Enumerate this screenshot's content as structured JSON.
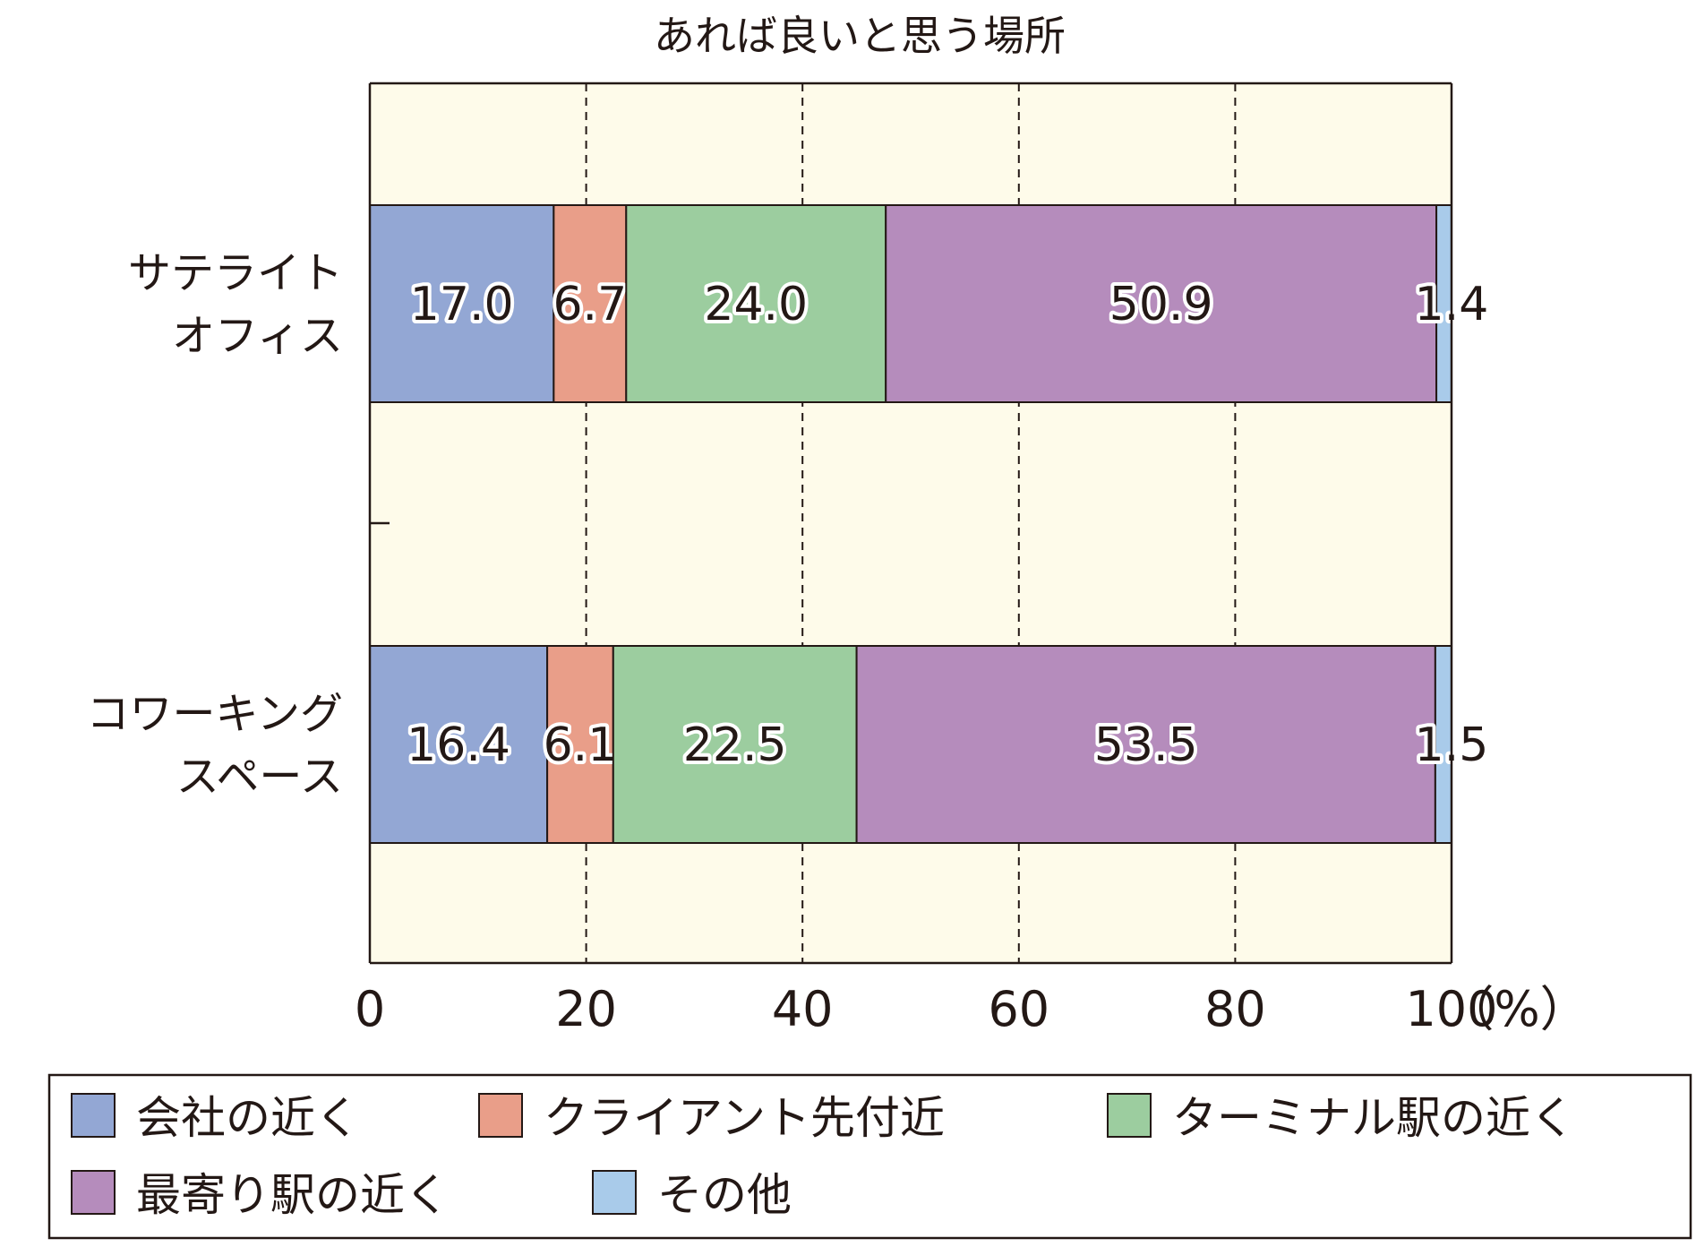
{
  "chart_data": {
    "type": "bar",
    "orientation": "horizontal",
    "stacked": true,
    "title": "あれば良いと思う場所",
    "categories": [
      {
        "line1": "サテライト",
        "line2": "オフィス"
      },
      {
        "line1": "コワーキング",
        "line2": "スペース"
      }
    ],
    "series": [
      {
        "name": "会社の近く",
        "values": [
          17.0,
          16.4
        ],
        "labels": [
          "17.0",
          "16.4"
        ],
        "color": "#93a7d4"
      },
      {
        "name": "クライアント先付近",
        "values": [
          6.7,
          6.1
        ],
        "labels": [
          "6.7",
          "6.1"
        ],
        "color": "#e99e89"
      },
      {
        "name": "ターミナル駅の近く",
        "values": [
          24.0,
          22.5
        ],
        "labels": [
          "24.0",
          "22.5"
        ],
        "color": "#9ccd9f"
      },
      {
        "name": "最寄り駅の近く",
        "values": [
          50.9,
          53.5
        ],
        "labels": [
          "50.9",
          "53.5"
        ],
        "color": "#b58cbc"
      },
      {
        "name": "その他",
        "values": [
          1.4,
          1.5
        ],
        "labels": [
          "1.4",
          "1.5"
        ],
        "color": "#a9cbea"
      }
    ],
    "xlim": [
      0,
      100
    ],
    "xticks": [
      "0",
      "20",
      "40",
      "60",
      "80",
      "100"
    ],
    "xunit": "（%）",
    "grid": "vertical dashed",
    "background": "#fefbea",
    "legend_position": "bottom"
  }
}
